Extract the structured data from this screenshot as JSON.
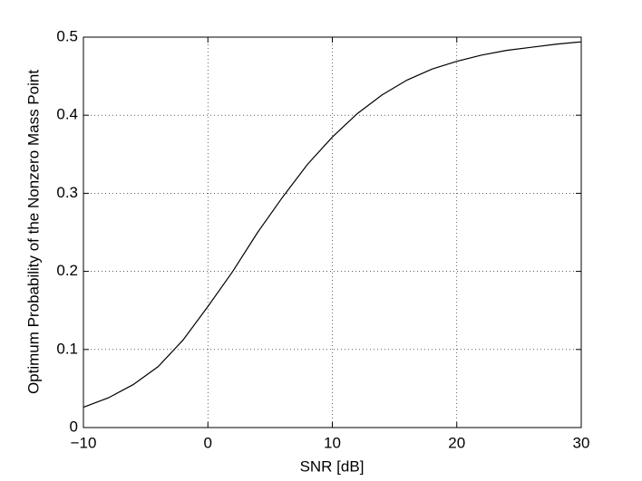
{
  "chart_data": {
    "type": "line",
    "xlabel": "SNR [dB]",
    "ylabel": "Optimum Probability of the Nonzero Mass Point",
    "x": [
      -10,
      -8,
      -6,
      -4,
      -2,
      0,
      2,
      4,
      6,
      8,
      10,
      12,
      14,
      16,
      18,
      20,
      22,
      24,
      26,
      28,
      30
    ],
    "series": [
      {
        "color": "#000000",
        "values": [
          0.026,
          0.038,
          0.055,
          0.078,
          0.112,
          0.155,
          0.2,
          0.25,
          0.295,
          0.337,
          0.372,
          0.402,
          0.426,
          0.445,
          0.459,
          0.469,
          0.477,
          0.483,
          0.487,
          0.491,
          0.494
        ]
      }
    ],
    "xlim": [
      -10,
      30
    ],
    "ylim": [
      0,
      0.5
    ],
    "xticks": [
      {
        "value": -10,
        "label": "−10"
      },
      0,
      10,
      20,
      30
    ],
    "yticks": [
      0,
      0.1,
      0.2,
      0.3,
      0.4,
      0.5
    ],
    "grid": true
  }
}
